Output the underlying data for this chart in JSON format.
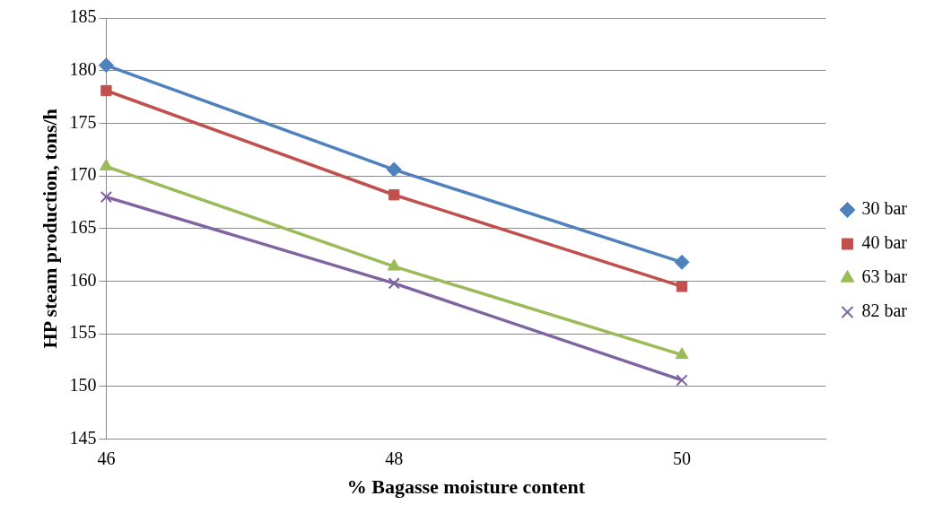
{
  "chart_data": {
    "type": "line",
    "xlabel": "% Bagasse moisture content",
    "ylabel": "HP steam production, tons/h",
    "x": [
      46,
      48,
      50
    ],
    "series": [
      {
        "name": "30 bar",
        "color": "#4f81bd",
        "marker": "diamond",
        "values": [
          180.5,
          170.6,
          161.8
        ]
      },
      {
        "name": "40 bar",
        "color": "#c0504d",
        "marker": "square",
        "values": [
          178.1,
          168.2,
          159.5
        ]
      },
      {
        "name": "63 bar",
        "color": "#9bbb59",
        "marker": "triangle",
        "values": [
          170.9,
          161.4,
          153.0
        ]
      },
      {
        "name": "82 bar",
        "color": "#8064a2",
        "marker": "cross",
        "values": [
          168.0,
          159.8,
          150.6
        ]
      }
    ],
    "xlim": [
      46,
      51
    ],
    "xticks": [
      46,
      48,
      50
    ],
    "ylim": [
      145,
      185
    ],
    "yticks": [
      145,
      150,
      155,
      160,
      165,
      170,
      175,
      180,
      185
    ],
    "grid": "y",
    "legend": "right"
  }
}
